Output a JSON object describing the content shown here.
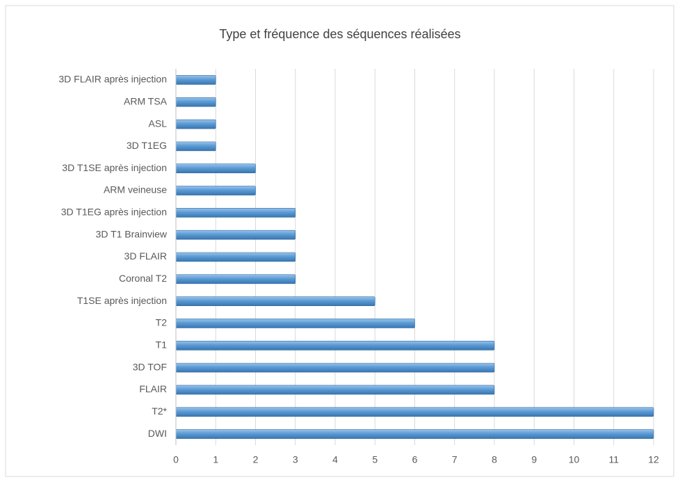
{
  "chart_data": {
    "type": "bar",
    "orientation": "horizontal",
    "title": "Type et fréquence des séquences réalisées",
    "categories": [
      "3D FLAIR après injection",
      "ARM TSA",
      "ASL",
      "3D T1EG",
      "3D T1SE après injection",
      "ARM veineuse",
      "3D T1EG après injection",
      "3D T1 Brainview",
      "3D FLAIR",
      "Coronal T2",
      "T1SE après injection",
      "T2",
      "T1",
      "3D TOF",
      "FLAIR",
      "T2*",
      "DWI"
    ],
    "values": [
      1,
      1,
      1,
      1,
      2,
      2,
      3,
      3,
      3,
      3,
      5,
      6,
      8,
      8,
      8,
      12,
      12
    ],
    "color": "#5b9bd5",
    "xlim": [
      0,
      12
    ],
    "xticks": [
      0,
      1,
      2,
      3,
      4,
      5,
      6,
      7,
      8,
      9,
      10,
      11,
      12
    ],
    "grid": true
  }
}
